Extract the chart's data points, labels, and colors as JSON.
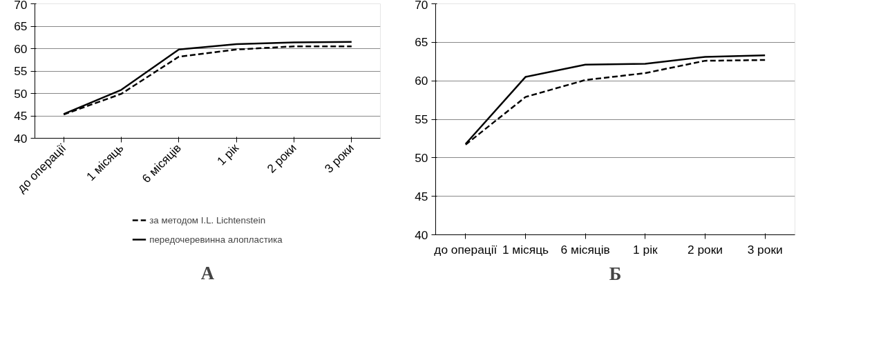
{
  "chart_data": [
    {
      "type": "line",
      "categories": [
        "до операції",
        "1 місяць",
        "6 місяців",
        "1 рік",
        "2 роки",
        "3 роки"
      ],
      "ylim": [
        40,
        70
      ],
      "yticks": [
        40,
        45,
        50,
        55,
        60,
        65,
        70
      ],
      "grid": "y",
      "legend": "bottom",
      "annotations": [
        "А"
      ],
      "series": [
        {
          "name": "за методом I.L. Lichtenstein",
          "color": "#000000",
          "line_style": "dashed",
          "values": [
            45.3,
            49.9,
            58.2,
            59.8,
            60.5,
            60.5
          ]
        },
        {
          "name": "передочеревинна алопластика",
          "color": "#000000",
          "line_style": "solid",
          "values": [
            45.4,
            50.8,
            59.8,
            61.0,
            61.4,
            61.5
          ]
        }
      ]
    },
    {
      "type": "line",
      "categories": [
        "до операції",
        "1 місяць",
        "6 місяців",
        "1 рік",
        "2 роки",
        "3 роки"
      ],
      "ylim": [
        40,
        70
      ],
      "yticks": [
        40,
        45,
        50,
        55,
        60,
        65,
        70
      ],
      "grid": "y",
      "annotations": [
        "Б"
      ],
      "series": [
        {
          "color": "#000000",
          "line_style": "dashed",
          "values": [
            51.7,
            57.9,
            60.1,
            61.0,
            62.6,
            62.7
          ]
        },
        {
          "color": "#000000",
          "line_style": "solid",
          "values": [
            51.8,
            60.5,
            62.1,
            62.2,
            63.1,
            63.3
          ]
        }
      ]
    }
  ]
}
